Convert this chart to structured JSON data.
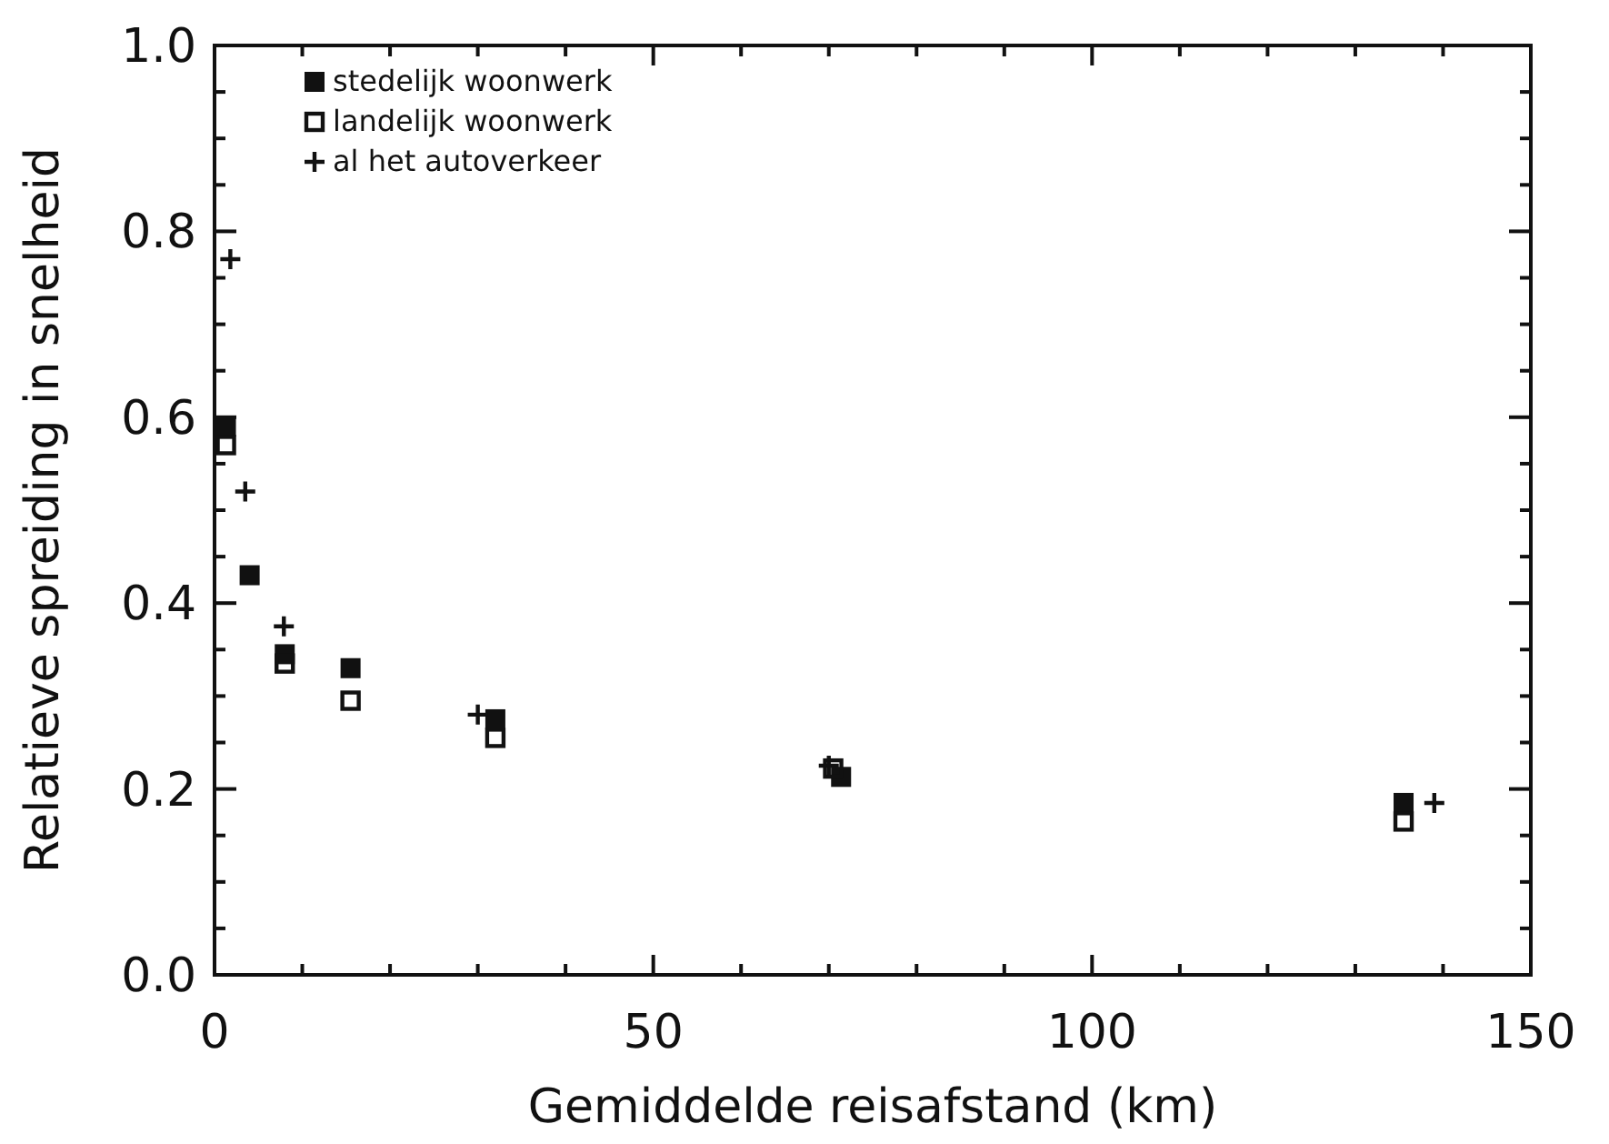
{
  "chart_data": {
    "type": "scatter",
    "xlabel": "Gemiddelde reisafstand (km)",
    "ylabel": "Relatieve spreiding in snelheid",
    "xlim": [
      0,
      150
    ],
    "ylim": [
      0,
      1
    ],
    "xticks": [
      0,
      {
        "value": 10,
        "label": null
      },
      {
        "value": 20,
        "label": null
      },
      {
        "value": 30,
        "label": null
      },
      {
        "value": 40,
        "label": null
      },
      50,
      {
        "value": 60,
        "label": null
      },
      {
        "value": 70,
        "label": null
      },
      {
        "value": 80,
        "label": null
      },
      {
        "value": 90,
        "label": null
      },
      100,
      {
        "value": 110,
        "label": null
      },
      {
        "value": 120,
        "label": null
      },
      {
        "value": 130,
        "label": null
      },
      {
        "value": 140,
        "label": null
      },
      150
    ],
    "yticks": [
      {
        "value": 0,
        "label": "0.0"
      },
      {
        "value": 0.05,
        "label": null
      },
      {
        "value": 0.1,
        "label": null
      },
      {
        "value": 0.15,
        "label": null
      },
      0.2,
      {
        "value": 0.25,
        "label": null
      },
      {
        "value": 0.3,
        "label": null
      },
      {
        "value": 0.35,
        "label": null
      },
      0.4,
      {
        "value": 0.45,
        "label": null
      },
      {
        "value": 0.5,
        "label": null
      },
      {
        "value": 0.55,
        "label": null
      },
      0.6,
      {
        "value": 0.65,
        "label": null
      },
      {
        "value": 0.7,
        "label": null
      },
      {
        "value": 0.75,
        "label": null
      },
      0.8,
      {
        "value": 0.85,
        "label": null
      },
      {
        "value": 0.9,
        "label": null
      },
      {
        "value": 0.95,
        "label": null
      },
      {
        "value": 1,
        "label": "1.0"
      }
    ],
    "legend": "top left",
    "grid": false,
    "series": [
      {
        "name": "stedelijk woonwerk",
        "color": "#111111",
        "marker": "square",
        "x": [
          1.3,
          4,
          8,
          15.5,
          32,
          71.4,
          135.5
        ],
        "values": [
          0.59,
          0.43,
          0.345,
          0.33,
          0.275,
          0.213,
          0.185
        ]
      },
      {
        "name": "landelijk woonwerk",
        "color": "#111111",
        "marker": "square-open",
        "x": [
          1.3,
          8,
          15.5,
          32,
          70.5,
          135.5
        ],
        "values": [
          0.57,
          0.335,
          0.295,
          0.255,
          0.222,
          0.165
        ]
      },
      {
        "name": "al het autoverkeer",
        "color": "#111111",
        "marker": "cross",
        "x": [
          1.8,
          3.5,
          7.9,
          30,
          70,
          139
        ],
        "values": [
          0.77,
          0.52,
          0.375,
          0.28,
          0.225,
          0.185
        ]
      }
    ]
  }
}
